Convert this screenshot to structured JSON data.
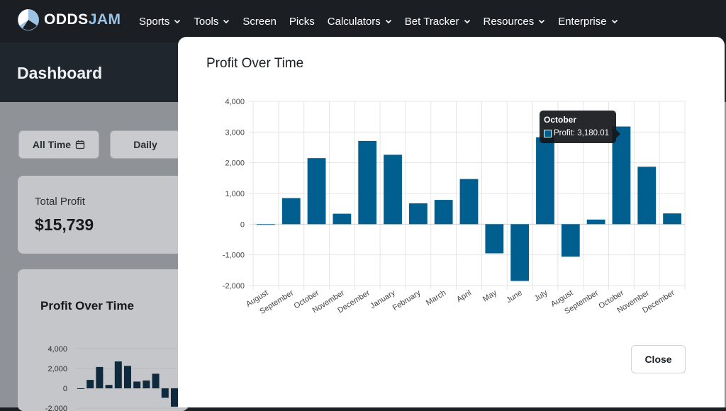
{
  "brand": {
    "name_a": "ODDS",
    "name_b": "JAM"
  },
  "nav": {
    "items": [
      {
        "label": "Sports",
        "dropdown": true
      },
      {
        "label": "Tools",
        "dropdown": true
      },
      {
        "label": "Screen",
        "dropdown": false
      },
      {
        "label": "Picks",
        "dropdown": false
      },
      {
        "label": "Calculators",
        "dropdown": true
      },
      {
        "label": "Bet Tracker",
        "dropdown": true
      },
      {
        "label": "Resources",
        "dropdown": true
      },
      {
        "label": "Enterprise",
        "dropdown": true
      }
    ]
  },
  "dashboard": {
    "title": "Dashboard",
    "filters": {
      "all_time": "All Time",
      "daily": "Daily"
    },
    "total_profit": {
      "label": "Total Profit",
      "value": "$15,739"
    },
    "profit_card": {
      "title": "Profit Over Time",
      "y_ticks": [
        "4,000",
        "2,000",
        "0",
        "-2,000"
      ]
    }
  },
  "modal": {
    "title": "Profit Over Time",
    "close_label": "Close",
    "tooltip": {
      "title": "October",
      "text": "Profit: 3,180.01"
    }
  },
  "colors": {
    "bar": "#005f8f",
    "nav_bg": "#1b1f24",
    "accent": "#9cc3e3"
  },
  "chart_data": {
    "type": "bar",
    "title": "Profit Over Time",
    "xlabel": "",
    "ylabel": "",
    "ylim": [
      -2000,
      4000
    ],
    "y_ticks": [
      4000,
      3000,
      2000,
      1000,
      0,
      -1000,
      -2000
    ],
    "y_tick_labels": [
      "4,000",
      "3,000",
      "2,000",
      "1,000",
      "0",
      "-1,000",
      "-2,000"
    ],
    "grid": true,
    "categories": [
      "August",
      "September",
      "October",
      "November",
      "December",
      "January",
      "February",
      "March",
      "April",
      "May",
      "June",
      "July",
      "August",
      "September",
      "October",
      "November",
      "December"
    ],
    "series": [
      {
        "name": "Profit",
        "values": [
          -20,
          850,
          2150,
          340,
          2710,
          2260,
          680,
          790,
          1470,
          -950,
          -1850,
          2830,
          -1060,
          150,
          3180.01,
          1870,
          350
        ]
      }
    ]
  }
}
